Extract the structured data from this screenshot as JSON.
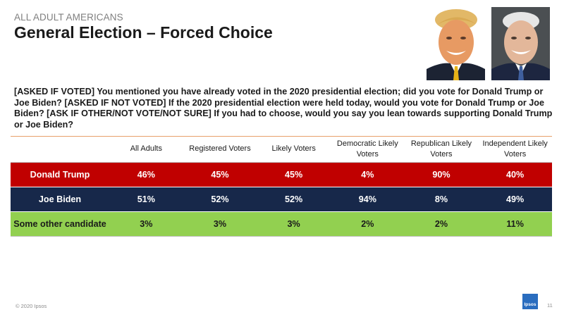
{
  "header": {
    "subtitle": "ALL ADULT AMERICANS",
    "title": "General Election – Forced Choice"
  },
  "question": "[ASKED IF VOTED] You mentioned you have already voted in the 2020 presidential election; did you vote for Donald Trump or Joe Biden? [ASKED IF NOT VOTED] If the 2020 presidential election were held today, would you vote for Donald Trump or Joe Biden? [ASK IF OTHER/NOT VOTE/NOT SURE] If you had to choose, would you say you lean towards supporting  Donald Trump or Joe Biden?",
  "table": {
    "columns": [
      "",
      "All Adults",
      "Registered Voters",
      "Likely Voters",
      "Democratic Likely Voters",
      "Republican Likely Voters",
      "Independent Likely Voters"
    ],
    "rows": [
      {
        "label": "Donald Trump",
        "values": [
          "46%",
          "45%",
          "45%",
          "4%",
          "90%",
          "40%"
        ],
        "color": "#c00000"
      },
      {
        "label": "Joe Biden",
        "values": [
          "51%",
          "52%",
          "52%",
          "94%",
          "8%",
          "49%"
        ],
        "color": "#17284a"
      },
      {
        "label": "Some other candidate",
        "values": [
          "3%",
          "3%",
          "3%",
          "2%",
          "2%",
          "11%"
        ],
        "color": "#92d050"
      }
    ]
  },
  "photos": {
    "trump": "trump-portrait",
    "biden": "biden-portrait"
  },
  "footer": {
    "copyright": "© 2020 Ipsos",
    "logo_text": "Ipsos",
    "page_number": "11"
  },
  "colors": {
    "rule": "#e8a06a",
    "logo": "#2a6dbf"
  }
}
